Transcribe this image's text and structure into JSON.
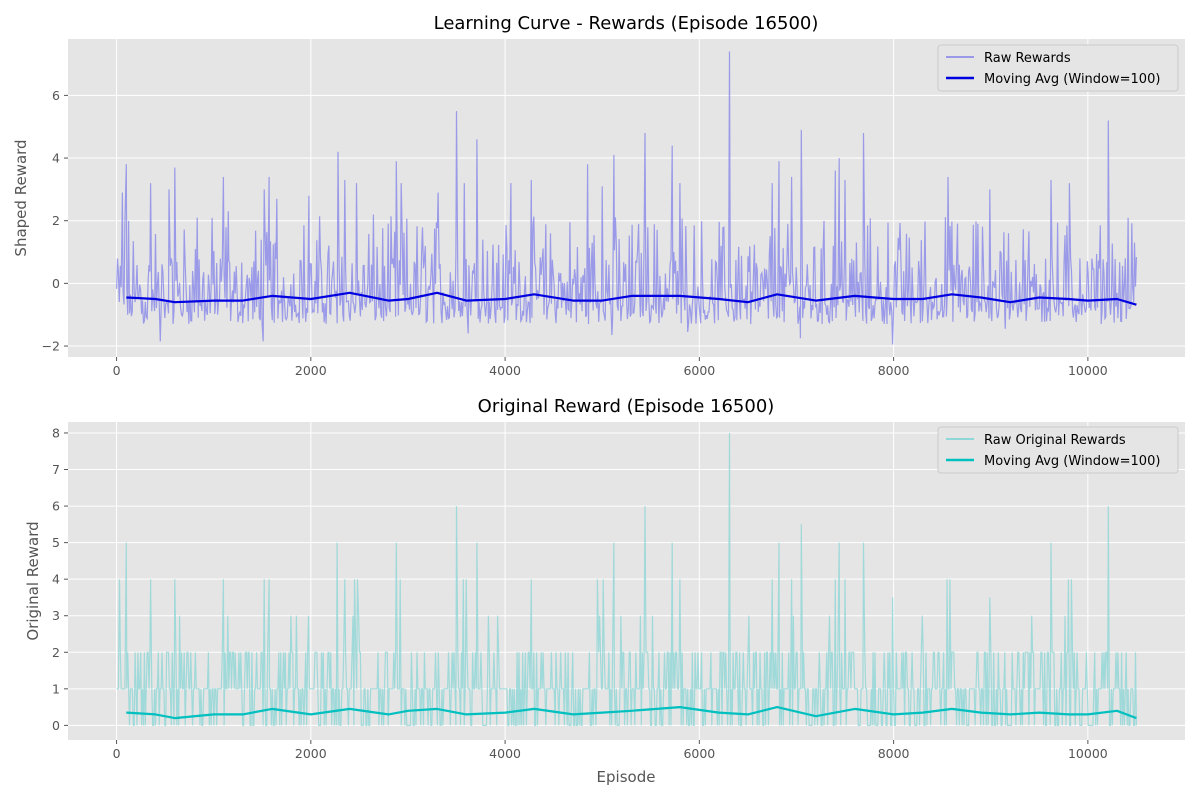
{
  "chart_data": [
    {
      "type": "line",
      "title": "Learning Curve - Rewards (Episode 16500)",
      "xlabel": "",
      "ylabel": "Shaped Reward",
      "xlim": [
        -500,
        11000
      ],
      "ylim": [
        -2.35,
        7.8
      ],
      "x_ticks": [
        0,
        2000,
        4000,
        6000,
        8000,
        10000
      ],
      "x_tick_labels": [
        "0",
        "2000",
        "4000",
        "6000",
        "8000",
        "10000"
      ],
      "y_ticks": [
        -2,
        0,
        2,
        4,
        6
      ],
      "y_tick_labels": [
        "−2",
        "0",
        "2",
        "4",
        "6"
      ],
      "grid": true,
      "legend_placement": "top-right",
      "legend": [
        "Raw Rewards",
        "Moving Avg (Window=100)"
      ],
      "series": [
        {
          "name": "Raw Rewards",
          "color": "#8080e8",
          "x_range": [
            0,
            10500
          ],
          "typical_low": -1.3,
          "typical_high": 1.0,
          "peaks": [
            {
              "x": 60,
              "y": 2.9
            },
            {
              "x": 100,
              "y": 3.8
            },
            {
              "x": 350,
              "y": 3.2
            },
            {
              "x": 540,
              "y": 3.0
            },
            {
              "x": 600,
              "y": 3.7
            },
            {
              "x": 830,
              "y": 2.1
            },
            {
              "x": 1100,
              "y": 3.4
            },
            {
              "x": 1150,
              "y": 2.3
            },
            {
              "x": 1520,
              "y": 3.0
            },
            {
              "x": 1570,
              "y": 3.4
            },
            {
              "x": 1650,
              "y": 2.7
            },
            {
              "x": 1980,
              "y": 2.8
            },
            {
              "x": 2280,
              "y": 4.2
            },
            {
              "x": 2350,
              "y": 3.3
            },
            {
              "x": 2470,
              "y": 3.2
            },
            {
              "x": 2880,
              "y": 3.9
            },
            {
              "x": 2930,
              "y": 3.2
            },
            {
              "x": 3310,
              "y": 2.9
            },
            {
              "x": 3500,
              "y": 5.5
            },
            {
              "x": 3580,
              "y": 3.2
            },
            {
              "x": 3710,
              "y": 4.6
            },
            {
              "x": 4060,
              "y": 3.2
            },
            {
              "x": 4270,
              "y": 3.3
            },
            {
              "x": 4850,
              "y": 3.8
            },
            {
              "x": 5000,
              "y": 3.1
            },
            {
              "x": 5120,
              "y": 4.1
            },
            {
              "x": 5440,
              "y": 4.8
            },
            {
              "x": 5720,
              "y": 4.4
            },
            {
              "x": 5800,
              "y": 3.2
            },
            {
              "x": 6310,
              "y": 7.4
            },
            {
              "x": 6750,
              "y": 3.2
            },
            {
              "x": 6820,
              "y": 3.9
            },
            {
              "x": 6950,
              "y": 3.4
            },
            {
              "x": 7050,
              "y": 4.9
            },
            {
              "x": 7400,
              "y": 3.6
            },
            {
              "x": 7440,
              "y": 4.0
            },
            {
              "x": 7500,
              "y": 3.3
            },
            {
              "x": 7690,
              "y": 4.8
            },
            {
              "x": 8560,
              "y": 3.4
            },
            {
              "x": 8990,
              "y": 3.0
            },
            {
              "x": 9620,
              "y": 3.3
            },
            {
              "x": 9810,
              "y": 3.2
            },
            {
              "x": 10210,
              "y": 5.2
            },
            {
              "x": 10480,
              "y": 1.3
            }
          ],
          "troughs": [
            {
              "x": 450,
              "y": -1.85
            },
            {
              "x": 1510,
              "y": -1.85
            },
            {
              "x": 3620,
              "y": -1.6
            },
            {
              "x": 5100,
              "y": -1.65
            },
            {
              "x": 5880,
              "y": -1.55
            },
            {
              "x": 7040,
              "y": -1.75
            },
            {
              "x": 7990,
              "y": -1.95
            },
            {
              "x": 9150,
              "y": -1.45
            }
          ]
        },
        {
          "name": "Moving Avg (Window=100)",
          "color": "#0000e0",
          "x": [
            100,
            400,
            600,
            1000,
            1300,
            1600,
            2000,
            2400,
            2800,
            3000,
            3300,
            3600,
            4000,
            4300,
            4700,
            5000,
            5300,
            5800,
            6200,
            6500,
            6800,
            7200,
            7600,
            8000,
            8300,
            8600,
            8900,
            9200,
            9500,
            9800,
            10000,
            10300,
            10500
          ],
          "y": [
            -0.45,
            -0.5,
            -0.6,
            -0.55,
            -0.55,
            -0.4,
            -0.5,
            -0.3,
            -0.55,
            -0.5,
            -0.3,
            -0.55,
            -0.5,
            -0.35,
            -0.55,
            -0.55,
            -0.4,
            -0.4,
            -0.5,
            -0.6,
            -0.35,
            -0.55,
            -0.4,
            -0.5,
            -0.5,
            -0.35,
            -0.45,
            -0.6,
            -0.45,
            -0.5,
            -0.55,
            -0.5,
            -0.68
          ]
        }
      ]
    },
    {
      "type": "line",
      "title": "Original Reward (Episode 16500)",
      "xlabel": "Episode",
      "ylabel": "Original Reward",
      "xlim": [
        -500,
        11000
      ],
      "ylim": [
        -0.4,
        8.3
      ],
      "x_ticks": [
        0,
        2000,
        4000,
        6000,
        8000,
        10000
      ],
      "x_tick_labels": [
        "0",
        "2000",
        "4000",
        "6000",
        "8000",
        "10000"
      ],
      "y_ticks": [
        0,
        1,
        2,
        3,
        4,
        5,
        6,
        7,
        8
      ],
      "y_tick_labels": [
        "0",
        "1",
        "2",
        "3",
        "4",
        "5",
        "6",
        "7",
        "8"
      ],
      "grid": true,
      "legend_placement": "top-right",
      "legend": [
        "Raw Original Rewards",
        "Moving Avg (Window=100)"
      ],
      "series": [
        {
          "name": "Raw Original Rewards",
          "color": "#8fd6d6",
          "x_range": [
            0,
            10500
          ],
          "typical_low": 0,
          "typical_high": 1,
          "band_level": 2,
          "peaks": [
            {
              "x": 30,
              "y": 4
            },
            {
              "x": 100,
              "y": 5
            },
            {
              "x": 350,
              "y": 4
            },
            {
              "x": 600,
              "y": 4
            },
            {
              "x": 1100,
              "y": 4
            },
            {
              "x": 1520,
              "y": 4
            },
            {
              "x": 1570,
              "y": 4
            },
            {
              "x": 2270,
              "y": 5
            },
            {
              "x": 2350,
              "y": 4
            },
            {
              "x": 2450,
              "y": 4
            },
            {
              "x": 2480,
              "y": 4
            },
            {
              "x": 2880,
              "y": 5
            },
            {
              "x": 2920,
              "y": 4
            },
            {
              "x": 3500,
              "y": 6
            },
            {
              "x": 3570,
              "y": 4
            },
            {
              "x": 3600,
              "y": 4
            },
            {
              "x": 3710,
              "y": 5
            },
            {
              "x": 4270,
              "y": 4
            },
            {
              "x": 4950,
              "y": 4
            },
            {
              "x": 5010,
              "y": 4
            },
            {
              "x": 5120,
              "y": 5
            },
            {
              "x": 5440,
              "y": 6
            },
            {
              "x": 5720,
              "y": 5
            },
            {
              "x": 5800,
              "y": 4
            },
            {
              "x": 6310,
              "y": 8
            },
            {
              "x": 6750,
              "y": 4
            },
            {
              "x": 6820,
              "y": 5
            },
            {
              "x": 6950,
              "y": 4
            },
            {
              "x": 7050,
              "y": 5.5
            },
            {
              "x": 7400,
              "y": 4
            },
            {
              "x": 7440,
              "y": 5
            },
            {
              "x": 7500,
              "y": 4
            },
            {
              "x": 7690,
              "y": 5
            },
            {
              "x": 7990,
              "y": 3.5
            },
            {
              "x": 8550,
              "y": 4
            },
            {
              "x": 8580,
              "y": 4
            },
            {
              "x": 8990,
              "y": 3.5
            },
            {
              "x": 9620,
              "y": 5
            },
            {
              "x": 9800,
              "y": 4
            },
            {
              "x": 9830,
              "y": 4
            },
            {
              "x": 10210,
              "y": 6
            }
          ],
          "troughs": []
        },
        {
          "name": "Moving Avg (Window=100)",
          "color": "#00bfbf",
          "x": [
            100,
            400,
            600,
            1000,
            1300,
            1600,
            2000,
            2400,
            2800,
            3000,
            3300,
            3600,
            4000,
            4300,
            4700,
            5000,
            5300,
            5800,
            6200,
            6500,
            6800,
            7200,
            7600,
            8000,
            8300,
            8600,
            8900,
            9200,
            9500,
            9800,
            10000,
            10300,
            10500
          ],
          "y": [
            0.35,
            0.3,
            0.2,
            0.3,
            0.3,
            0.45,
            0.3,
            0.45,
            0.3,
            0.4,
            0.45,
            0.3,
            0.35,
            0.45,
            0.3,
            0.35,
            0.4,
            0.5,
            0.35,
            0.3,
            0.5,
            0.25,
            0.45,
            0.3,
            0.35,
            0.45,
            0.35,
            0.3,
            0.35,
            0.3,
            0.3,
            0.4,
            0.2
          ]
        }
      ]
    }
  ]
}
